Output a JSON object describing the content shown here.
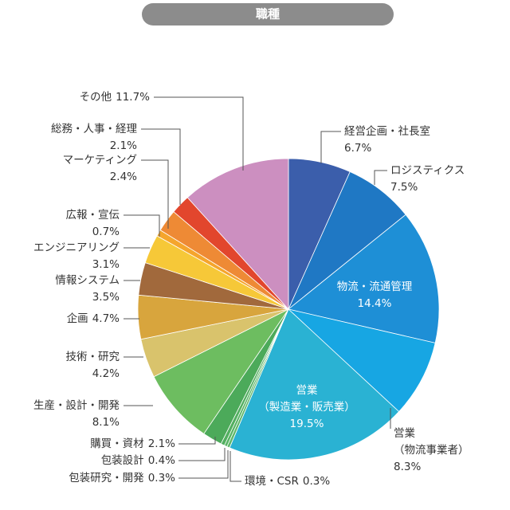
{
  "chart_data": {
    "type": "pie",
    "title": "職種",
    "categories": [
      "経営企画・社長室",
      "ロジスティクス",
      "物流・流通管理",
      [
        "営業",
        "（物流事業者）"
      ],
      [
        "営業",
        "（製造業・販売業）"
      ],
      "環境・CSR",
      "包装研究・開発",
      "包装設計",
      "購買・資材",
      "生産・設計・開発",
      "技術・研究",
      "企画",
      "情報システム",
      "エンジニアリング",
      "広報・宣伝",
      "マーケティング",
      "総務・人事・経理",
      "その他"
    ],
    "values": [
      6.7,
      7.5,
      14.4,
      8.3,
      19.5,
      0.3,
      0.3,
      0.4,
      2.1,
      8.1,
      4.2,
      4.7,
      3.5,
      3.1,
      0.7,
      2.4,
      2.1,
      11.7
    ],
    "value_labels": [
      "6.7%",
      "7.5%",
      "14.4%",
      "8.3%",
      "19.5%",
      "0.3%",
      "0.3%",
      "0.4%",
      "2.1%",
      "8.1%",
      "4.2%",
      "4.7%",
      "3.5%",
      "3.1%",
      "0.7%",
      "2.4%",
      "2.1%",
      "11.7%"
    ],
    "colors": [
      "#3b5eab",
      "#1f78c4",
      "#1e8fd6",
      "#17a6e3",
      "#2ab2d3",
      "#5fb86a",
      "#58b465",
      "#52af60",
      "#4caa5a",
      "#6dbd60",
      "#d9c36c",
      "#d8a53d",
      "#a1693c",
      "#f6c838",
      "#f5a52c",
      "#ee8a35",
      "#e2462d",
      "#cc8fc0"
    ]
  }
}
